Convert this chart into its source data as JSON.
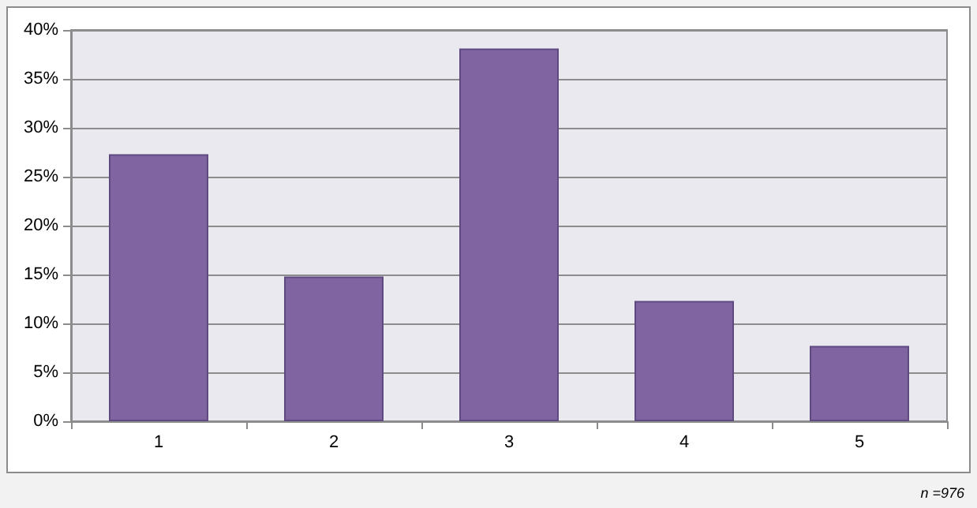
{
  "chart_data": {
    "type": "bar",
    "categories": [
      "1",
      "2",
      "3",
      "4",
      "5"
    ],
    "values": [
      27.3,
      14.8,
      38.1,
      12.3,
      7.7
    ],
    "color": "#8064a2",
    "ylim": [
      0,
      40
    ],
    "yticks": [
      {
        "value": 0,
        "label": "0%"
      },
      {
        "value": 5,
        "label": "5%"
      },
      {
        "value": 10,
        "label": "10%"
      },
      {
        "value": 15,
        "label": "15%"
      },
      {
        "value": 20,
        "label": "20%"
      },
      {
        "value": 25,
        "label": "25%"
      },
      {
        "value": 30,
        "label": "30%"
      },
      {
        "value": 35,
        "label": "35%"
      },
      {
        "value": 40,
        "label": "40%"
      }
    ],
    "grid": "y",
    "annotations": [
      "n =976"
    ]
  }
}
